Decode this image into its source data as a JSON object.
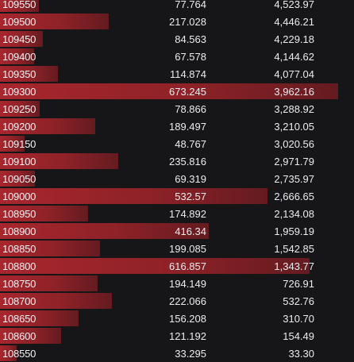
{
  "orderbook": {
    "side": "asks",
    "max_size": 673.245,
    "bar_color": "#a8262d",
    "rows": [
      {
        "price": "109550",
        "size": "77.764",
        "total": "4,523.97"
      },
      {
        "price": "109500",
        "size": "217.028",
        "total": "4,446.21"
      },
      {
        "price": "109450",
        "size": "84.563",
        "total": "4,229.18"
      },
      {
        "price": "109400",
        "size": "67.578",
        "total": "4,144.62"
      },
      {
        "price": "109350",
        "size": "114.874",
        "total": "4,077.04"
      },
      {
        "price": "109300",
        "size": "673.245",
        "total": "3,962.16"
      },
      {
        "price": "109250",
        "size": "78.866",
        "total": "3,288.92"
      },
      {
        "price": "109200",
        "size": "189.497",
        "total": "3,210.05"
      },
      {
        "price": "109150",
        "size": "48.767",
        "total": "3,020.56"
      },
      {
        "price": "109100",
        "size": "235.816",
        "total": "2,971.79"
      },
      {
        "price": "109050",
        "size": "69.319",
        "total": "2,735.97"
      },
      {
        "price": "109000",
        "size": "532.57",
        "total": "2,666.65"
      },
      {
        "price": "108950",
        "size": "174.892",
        "total": "2,134.08"
      },
      {
        "price": "108900",
        "size": "416.34",
        "total": "1,959.19"
      },
      {
        "price": "108850",
        "size": "199.085",
        "total": "1,542.85"
      },
      {
        "price": "108800",
        "size": "616.857",
        "total": "1,343.77"
      },
      {
        "price": "108750",
        "size": "194.149",
        "total": "726.91"
      },
      {
        "price": "108700",
        "size": "222.066",
        "total": "532.76"
      },
      {
        "price": "108650",
        "size": "156.208",
        "total": "310.70"
      },
      {
        "price": "108600",
        "size": "121.192",
        "total": "154.49"
      },
      {
        "price": "108550",
        "size": "33.295",
        "total": "33.30"
      }
    ]
  }
}
